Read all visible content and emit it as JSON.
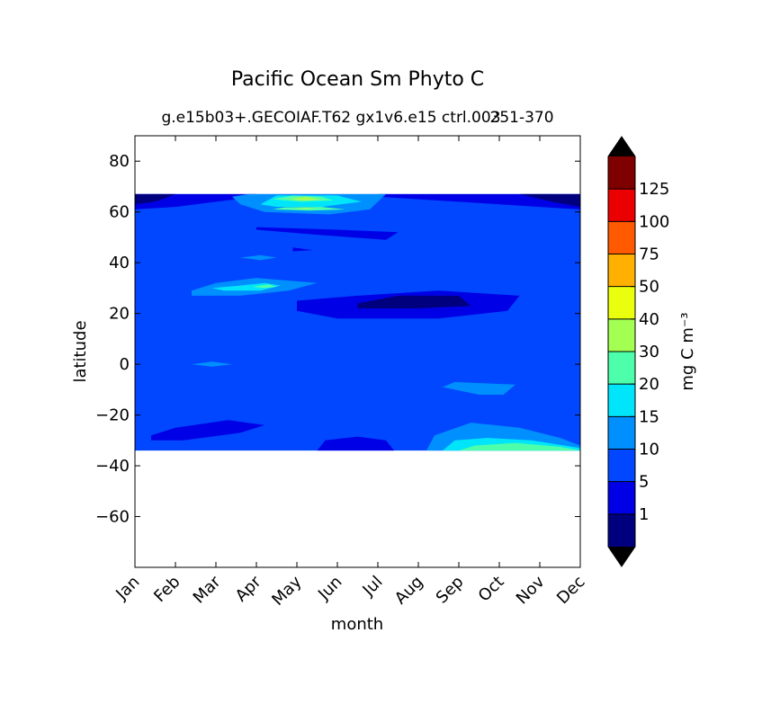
{
  "chart_data": {
    "type": "heatmap",
    "subtype": "filled-contour",
    "title": "Pacific Ocean Sm Phyto C",
    "subtitle": "g.e15b03+.GECOIAF.T62 gx1v6.e15 ctrl.003",
    "subtitle_overlap": "251-370",
    "xlabel": "month",
    "ylabel": "latitude",
    "x_ticks": [
      "Jan",
      "Feb",
      "Mar",
      "Apr",
      "May",
      "Jun",
      "Jul",
      "Aug",
      "Sep",
      "Oct",
      "Nov",
      "Dec"
    ],
    "xlim": [
      0,
      11
    ],
    "ylim": [
      -80,
      90
    ],
    "y_ticks": [
      80,
      60,
      40,
      20,
      0,
      -20,
      -40,
      -60
    ],
    "y_tick_labels": [
      "80",
      "60",
      "40",
      "20",
      "0",
      "−20",
      "−40",
      "−60"
    ],
    "data_lat_range": [
      -34,
      67
    ],
    "colorbar": {
      "label": "mg C m⁻³",
      "tick_labels": [
        "1",
        "5",
        "10",
        "15",
        "20",
        "30",
        "40",
        "50",
        "75",
        "100",
        "125"
      ],
      "levels": [
        1,
        5,
        10,
        15,
        20,
        30,
        40,
        50,
        75,
        100,
        125
      ],
      "colors": [
        "#00007f",
        "#0000e6",
        "#0047ff",
        "#008fff",
        "#00e5f9",
        "#4dffaa",
        "#a4ff53",
        "#eaff0d",
        "#ffb000",
        "#ff5a00",
        "#ea0000",
        "#7f0000"
      ],
      "extend": "both",
      "over_color": "#000000",
      "under_color": "#000000"
    },
    "regions": [
      {
        "level_index": 2,
        "description": "background",
        "polygon": [
          [
            0,
            -34
          ],
          [
            11,
            -34
          ],
          [
            11,
            67
          ],
          [
            0,
            67
          ]
        ]
      },
      {
        "level_index": 1,
        "polygon": [
          [
            0,
            67
          ],
          [
            3,
            67
          ],
          [
            2.5,
            65
          ],
          [
            1,
            62
          ],
          [
            0,
            61
          ]
        ]
      },
      {
        "level_index": 1,
        "polygon": [
          [
            6,
            67
          ],
          [
            11,
            67
          ],
          [
            11,
            61
          ],
          [
            10,
            62
          ],
          [
            8,
            64
          ],
          [
            6,
            66
          ]
        ]
      },
      {
        "level_index": 0,
        "polygon": [
          [
            0,
            67
          ],
          [
            1,
            67
          ],
          [
            0.5,
            64
          ],
          [
            0,
            63
          ]
        ]
      },
      {
        "level_index": 0,
        "polygon": [
          [
            9.5,
            67
          ],
          [
            11,
            67
          ],
          [
            11,
            62
          ],
          [
            10.3,
            64
          ]
        ]
      },
      {
        "level_index": 1,
        "polygon": [
          [
            3.0,
            54
          ],
          [
            5.0,
            53
          ],
          [
            6.5,
            52
          ],
          [
            6.2,
            49
          ],
          [
            4.5,
            51
          ],
          [
            3.0,
            53
          ]
        ]
      },
      {
        "level_index": 1,
        "polygon": [
          [
            3.9,
            46
          ],
          [
            4.4,
            45
          ],
          [
            3.9,
            44.5
          ]
        ]
      },
      {
        "level_index": 1,
        "polygon": [
          [
            4.0,
            25
          ],
          [
            5.5,
            27
          ],
          [
            7.5,
            29
          ],
          [
            9.5,
            27
          ],
          [
            9.2,
            21
          ],
          [
            7.5,
            18
          ],
          [
            5.0,
            18
          ],
          [
            4.0,
            21
          ]
        ]
      },
      {
        "level_index": 0,
        "polygon": [
          [
            5.5,
            24
          ],
          [
            6.5,
            27
          ],
          [
            8,
            27
          ],
          [
            8.3,
            23
          ],
          [
            7,
            22
          ],
          [
            5.5,
            22
          ]
        ]
      },
      {
        "level_index": 1,
        "polygon": [
          [
            0.4,
            -28
          ],
          [
            1.0,
            -25
          ],
          [
            2.3,
            -22
          ],
          [
            3.2,
            -24
          ],
          [
            2.6,
            -27
          ],
          [
            1.2,
            -30
          ],
          [
            0.4,
            -30
          ]
        ]
      },
      {
        "level_index": 1,
        "polygon": [
          [
            4.5,
            -34
          ],
          [
            4.7,
            -30
          ],
          [
            5.5,
            -28.5
          ],
          [
            6.2,
            -30
          ],
          [
            6.4,
            -34
          ]
        ]
      },
      {
        "level_index": 3,
        "polygon": [
          [
            1.4,
            29
          ],
          [
            2.0,
            32
          ],
          [
            3.0,
            34
          ],
          [
            4.5,
            32
          ],
          [
            3.8,
            29
          ],
          [
            2.6,
            27
          ],
          [
            1.4,
            27
          ]
        ]
      },
      {
        "level_index": 4,
        "polygon": [
          [
            1.9,
            30
          ],
          [
            2.6,
            31
          ],
          [
            3.2,
            32
          ],
          [
            3.6,
            31
          ],
          [
            3.1,
            29
          ],
          [
            2.2,
            29
          ]
        ]
      },
      {
        "level_index": 5,
        "polygon": [
          [
            2.9,
            30.5
          ],
          [
            3.3,
            31.5
          ],
          [
            3.5,
            30.5
          ],
          [
            3.2,
            30
          ]
        ]
      },
      {
        "level_index": 3,
        "polygon": [
          [
            2.6,
            42
          ],
          [
            3.1,
            43
          ],
          [
            3.5,
            42
          ],
          [
            3.1,
            41
          ]
        ]
      },
      {
        "level_index": 3,
        "polygon": [
          [
            1.4,
            0
          ],
          [
            1.9,
            1
          ],
          [
            2.4,
            0
          ],
          [
            1.9,
            -1
          ]
        ]
      },
      {
        "level_index": 3,
        "polygon": [
          [
            7.6,
            -9
          ],
          [
            7.9,
            -7
          ],
          [
            9.4,
            -8
          ],
          [
            9.1,
            -12
          ],
          [
            8.5,
            -12
          ]
        ]
      },
      {
        "level_index": 3,
        "polygon": [
          [
            7.2,
            -34
          ],
          [
            7.4,
            -28
          ],
          [
            8.3,
            -23
          ],
          [
            9.5,
            -25
          ],
          [
            10.5,
            -29
          ],
          [
            11,
            -32
          ],
          [
            11,
            -34
          ]
        ]
      },
      {
        "level_index": 4,
        "polygon": [
          [
            7.6,
            -34
          ],
          [
            7.9,
            -30
          ],
          [
            8.7,
            -29
          ],
          [
            9.8,
            -30
          ],
          [
            11,
            -33
          ],
          [
            11,
            -34
          ]
        ]
      },
      {
        "level_index": 5,
        "polygon": [
          [
            8.0,
            -34
          ],
          [
            8.4,
            -32
          ],
          [
            9.4,
            -31
          ],
          [
            10.5,
            -32.5
          ],
          [
            11,
            -34
          ]
        ]
      },
      {
        "level_index": 3,
        "polygon": [
          [
            2.4,
            66
          ],
          [
            2.8,
            67
          ],
          [
            6.2,
            67
          ],
          [
            5.8,
            61
          ],
          [
            4.8,
            59
          ],
          [
            3.2,
            60
          ],
          [
            2.6,
            63
          ]
        ]
      },
      {
        "level_index": 4,
        "polygon": [
          [
            3.1,
            63
          ],
          [
            3.5,
            66.5
          ],
          [
            5.0,
            66.5
          ],
          [
            5.6,
            64
          ],
          [
            4.6,
            62
          ],
          [
            3.5,
            62
          ]
        ]
      },
      {
        "level_index": 5,
        "polygon": [
          [
            3.4,
            65
          ],
          [
            3.9,
            66.5
          ],
          [
            4.6,
            66
          ],
          [
            4.9,
            64.5
          ],
          [
            4.1,
            64
          ]
        ]
      },
      {
        "level_index": 6,
        "polygon": [
          [
            3.8,
            65
          ],
          [
            4.2,
            66
          ],
          [
            4.6,
            65
          ],
          [
            4.2,
            64.5
          ]
        ]
      },
      {
        "level_index": 5,
        "polygon": [
          [
            3.4,
            61
          ],
          [
            3.7,
            61.8
          ],
          [
            4.6,
            62
          ],
          [
            5.2,
            61
          ],
          [
            4.3,
            60.5
          ]
        ]
      },
      {
        "level_index": 6,
        "polygon": [
          [
            3.9,
            61.2
          ],
          [
            4.2,
            61.7
          ],
          [
            4.5,
            61.2
          ]
        ]
      }
    ]
  }
}
